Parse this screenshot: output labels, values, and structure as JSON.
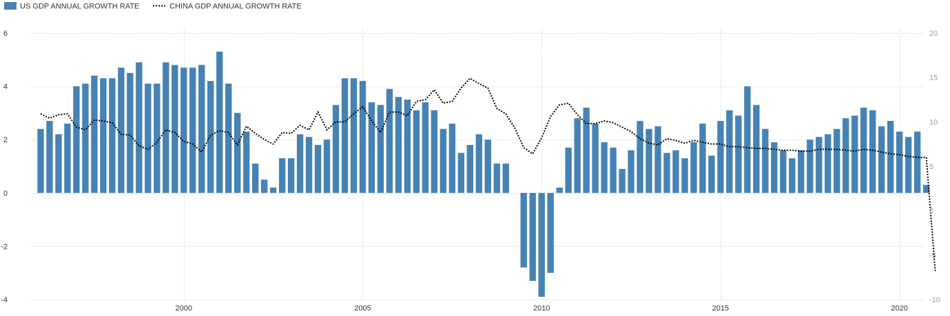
{
  "chart_data": {
    "type": "bar",
    "x_start_year": 1996,
    "x_step": 0.25,
    "xticks": [
      "2000",
      "2005",
      "2010",
      "2015",
      "2020"
    ],
    "xlim": [
      1995.75,
      2020.7
    ],
    "y_left_ticks": [
      "6",
      "4",
      "2",
      "0",
      "-2",
      "-4"
    ],
    "y_left_lim": [
      -4,
      6
    ],
    "y_right_ticks": [
      "20",
      "15",
      "10",
      "5",
      "0",
      "-5",
      "-10"
    ],
    "y_right_lim": [
      -10,
      20
    ],
    "grid": true,
    "legend_position": "top-left",
    "colors": {
      "bar": "#4682b4",
      "line": "#000000",
      "grid": "#c8c8c8"
    },
    "series": [
      {
        "name": "US GDP ANNUAL GROWTH RATE",
        "type": "bar",
        "axis": "left",
        "values": [
          2.4,
          2.7,
          2.2,
          2.6,
          4.0,
          4.1,
          4.4,
          4.3,
          4.3,
          4.7,
          4.5,
          4.9,
          4.1,
          4.1,
          4.9,
          4.8,
          4.7,
          4.7,
          4.8,
          4.2,
          5.3,
          4.1,
          3.0,
          2.3,
          1.1,
          0.5,
          0.2,
          1.3,
          1.3,
          2.2,
          2.1,
          1.8,
          2.0,
          3.3,
          4.3,
          4.3,
          4.2,
          3.4,
          3.3,
          3.9,
          3.6,
          3.5,
          3.1,
          3.4,
          3.1,
          2.4,
          2.6,
          1.5,
          1.8,
          2.2,
          2.0,
          1.1,
          1.1,
          null,
          -2.8,
          -3.3,
          -3.9,
          -3.0,
          0.2,
          1.7,
          2.8,
          3.2,
          2.6,
          1.9,
          1.7,
          0.9,
          1.6,
          2.7,
          2.4,
          2.5,
          1.5,
          1.6,
          1.3,
          1.9,
          2.6,
          1.4,
          2.7,
          3.1,
          2.9,
          4.0,
          3.3,
          2.4,
          1.9,
          1.6,
          1.3,
          1.6,
          2.0,
          2.1,
          2.2,
          2.4,
          2.8,
          2.9,
          3.2,
          3.1,
          2.5,
          2.7,
          2.3,
          2.1,
          2.3,
          0.3
        ]
      },
      {
        "name": "CHINA GDP ANNUAL GROWTH RATE",
        "type": "line",
        "axis": "right",
        "style": "dotted",
        "values": [
          10.9,
          10.4,
          10.8,
          10.9,
          9.4,
          9.1,
          10.2,
          10.1,
          9.9,
          8.6,
          8.5,
          7.3,
          6.9,
          7.7,
          9.1,
          8.8,
          7.8,
          7.5,
          6.6,
          8.5,
          9.0,
          8.8,
          7.4,
          9.5,
          8.7,
          8.0,
          7.5,
          8.8,
          8.7,
          9.6,
          9.1,
          11.1,
          9.1,
          10.0,
          10.0,
          10.9,
          11.7,
          10.1,
          8.8,
          11.1,
          11.1,
          10.7,
          12.3,
          12.5,
          13.6,
          12.1,
          12.3,
          13.8,
          14.9,
          14.3,
          13.8,
          11.5,
          10.9,
          9.3,
          7.1,
          6.4,
          8.2,
          10.6,
          11.9,
          12.1,
          10.8,
          9.8,
          9.8,
          10.1,
          9.9,
          9.4,
          8.9,
          8.1,
          7.6,
          7.4,
          8.1,
          7.9,
          7.6,
          7.9,
          7.7,
          7.5,
          7.5,
          7.2,
          7.2,
          7.1,
          7.0,
          7.0,
          6.9,
          6.8,
          6.8,
          6.7,
          6.7,
          6.9,
          6.9,
          6.9,
          6.8,
          6.7,
          6.9,
          6.8,
          6.6,
          6.4,
          6.3,
          6.1,
          6.0,
          6.0,
          -6.8
        ]
      }
    ]
  }
}
